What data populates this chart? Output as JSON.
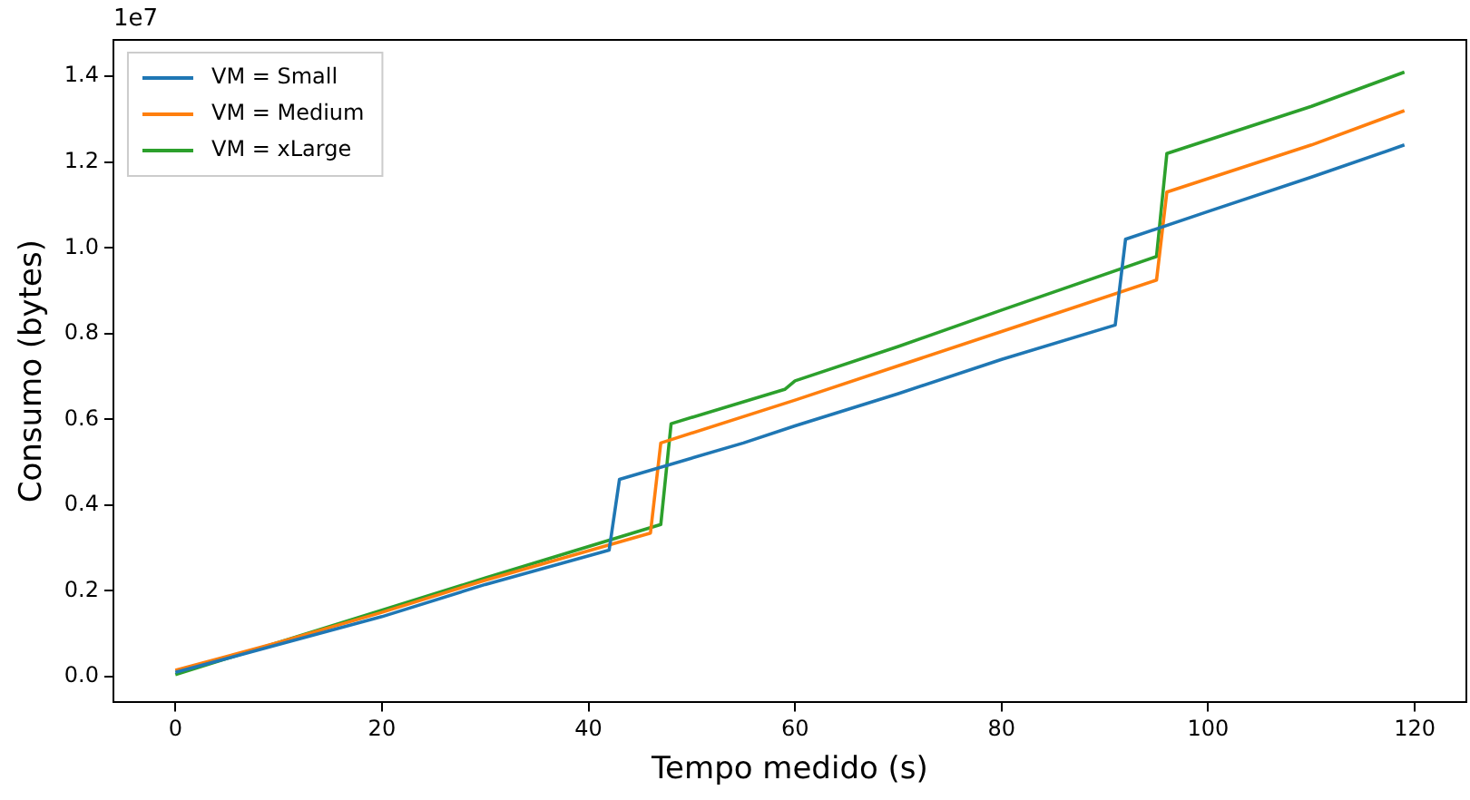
{
  "chart_data": {
    "type": "line",
    "xlabel": "Tempo medido (s)",
    "ylabel": "Consumo (bytes)",
    "annotations": [
      "1e7"
    ],
    "xlim": [
      -6,
      125
    ],
    "xticks": [
      0,
      20,
      40,
      60,
      80,
      100,
      120
    ],
    "ylim": [
      -0.06,
      1.485
    ],
    "yticks": [
      {
        "value": 0,
        "label": "0.0"
      },
      0.2,
      0.4,
      0.6,
      0.8,
      {
        "value": 1,
        "label": "1.0"
      },
      1.2,
      1.4
    ],
    "grid": false,
    "legend": "top left",
    "marker": "none",
    "line_style": "solid",
    "series": [
      {
        "name": "VM = Small",
        "color": "#1f77b4",
        "x": [
          0,
          10,
          20,
          30,
          42,
          43,
          55,
          60,
          70,
          80,
          91,
          92,
          100,
          110,
          119
        ],
        "values": [
          0.01,
          0.075,
          0.14,
          0.215,
          0.295,
          0.46,
          0.545,
          0.585,
          0.66,
          0.74,
          0.82,
          1.02,
          1.085,
          1.165,
          1.24
        ]
      },
      {
        "name": "VM = Medium",
        "color": "#ff7f0e",
        "x": [
          0,
          10,
          20,
          30,
          46,
          47,
          60,
          70,
          80,
          95,
          96,
          110,
          119
        ],
        "values": [
          0.015,
          0.08,
          0.15,
          0.225,
          0.335,
          0.545,
          0.645,
          0.725,
          0.805,
          0.925,
          1.13,
          1.24,
          1.32
        ]
      },
      {
        "name": "VM = xLarge",
        "color": "#2ca02c",
        "x": [
          0,
          10,
          20,
          30,
          47,
          48,
          59,
          60,
          70,
          80,
          95,
          96,
          110,
          119
        ],
        "values": [
          0.005,
          0.08,
          0.155,
          0.23,
          0.355,
          0.59,
          0.67,
          0.69,
          0.77,
          0.855,
          0.98,
          1.22,
          1.33,
          1.41
        ]
      }
    ]
  }
}
